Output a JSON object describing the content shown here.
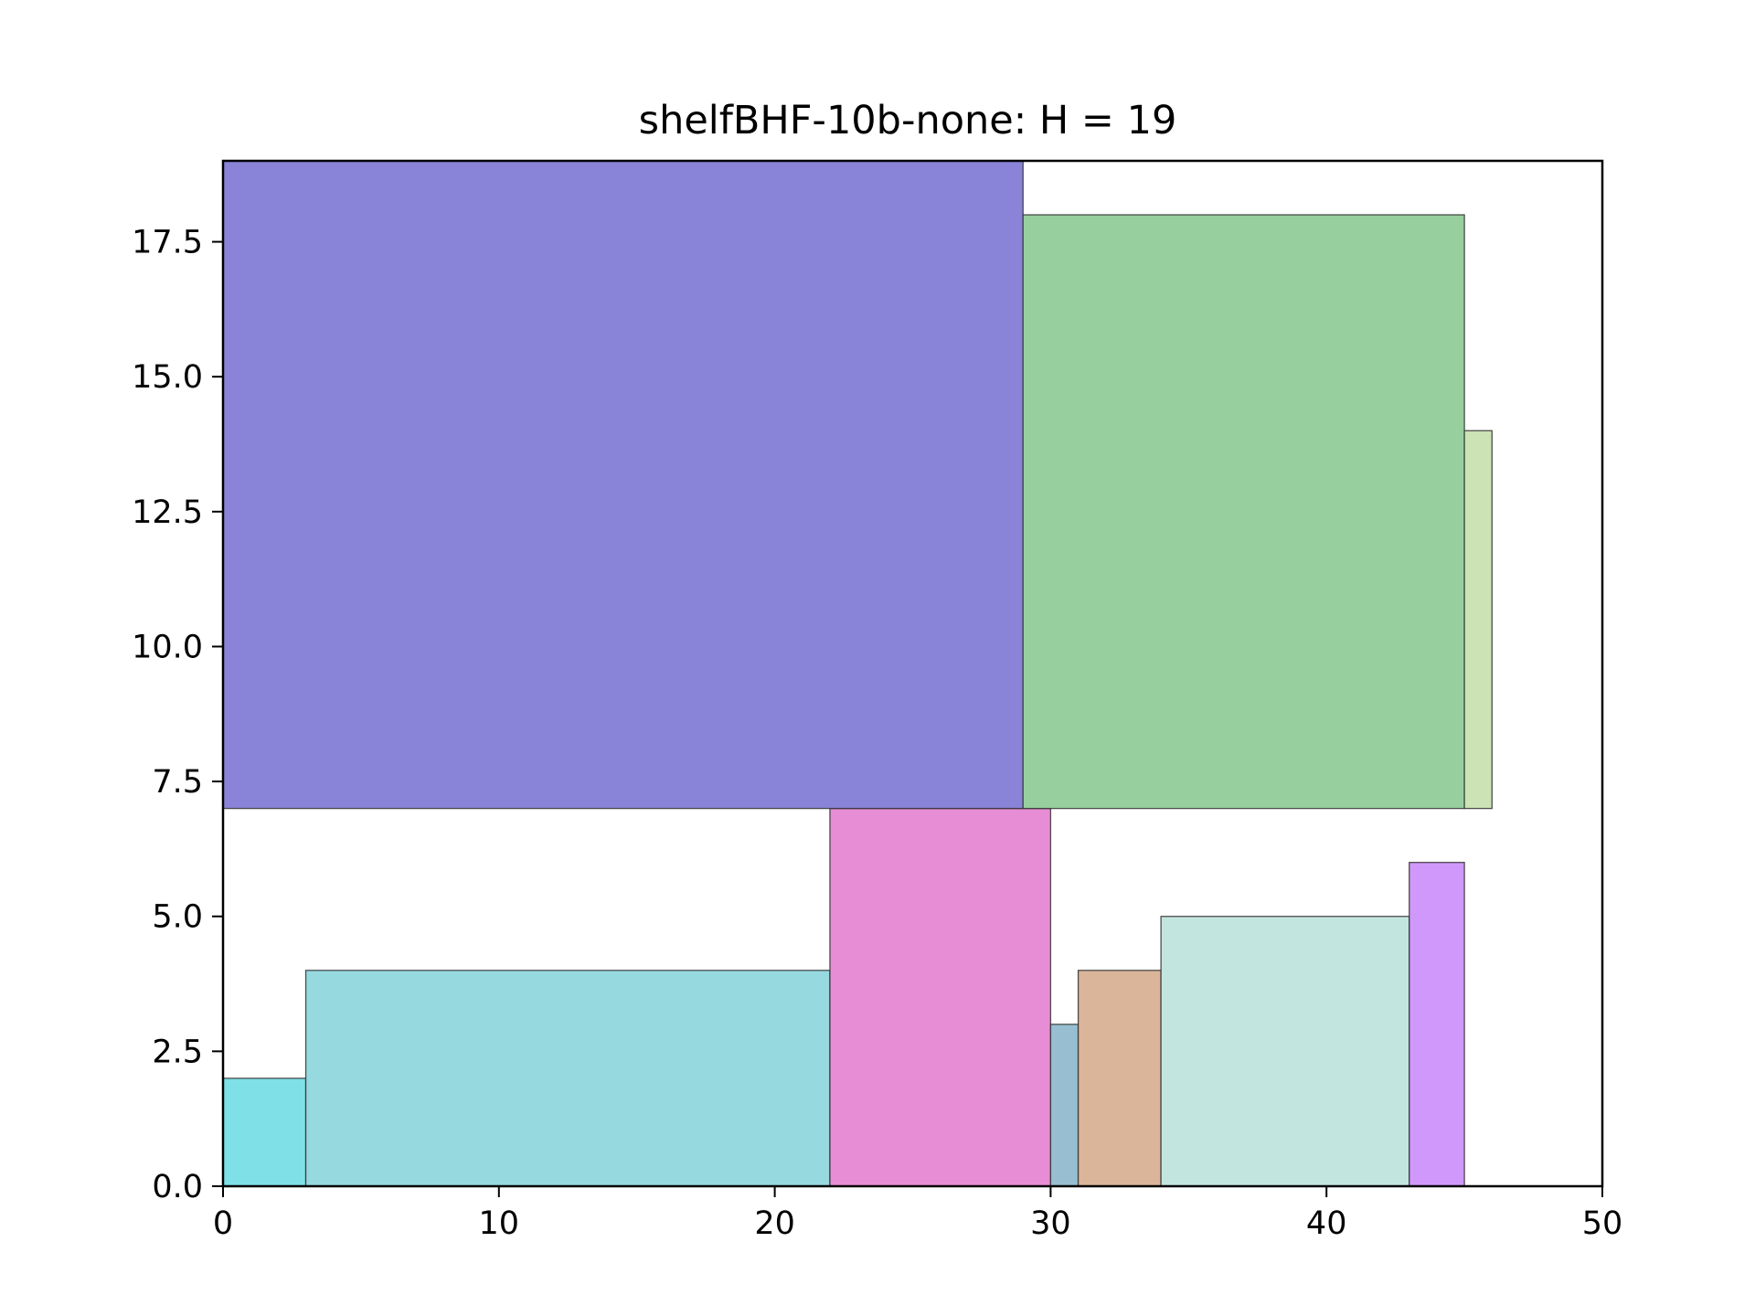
{
  "chart_data": {
    "type": "rectangle-packing",
    "title": "shelfBHF-10b-none: H = 19",
    "xlabel": "",
    "ylabel": "",
    "xlim": [
      0,
      50
    ],
    "ylim": [
      0,
      19
    ],
    "xticks": [
      {
        "value": 0,
        "label": "0"
      },
      {
        "value": 10,
        "label": "10"
      },
      {
        "value": 20,
        "label": "20"
      },
      {
        "value": 30,
        "label": "30"
      },
      {
        "value": 40,
        "label": "40"
      },
      {
        "value": 50,
        "label": "50"
      }
    ],
    "yticks": [
      {
        "value": 0,
        "label": "0.0"
      },
      {
        "value": 2.5,
        "label": "2.5"
      },
      {
        "value": 5,
        "label": "5.0"
      },
      {
        "value": 7.5,
        "label": "7.5"
      },
      {
        "value": 10,
        "label": "10.0"
      },
      {
        "value": 12.5,
        "label": "12.5"
      },
      {
        "value": 15,
        "label": "15.0"
      },
      {
        "value": 17.5,
        "label": "17.5"
      }
    ],
    "grid": false,
    "rectangles": [
      {
        "x": 0,
        "y": 0,
        "w": 3,
        "h": 2,
        "color": "#7fe0e8"
      },
      {
        "x": 3,
        "y": 0,
        "w": 19,
        "h": 4,
        "color": "#96d9df"
      },
      {
        "x": 22,
        "y": 0,
        "w": 8,
        "h": 7,
        "color": "#e78dd5"
      },
      {
        "x": 30,
        "y": 0,
        "w": 1,
        "h": 3,
        "color": "#97bfd1"
      },
      {
        "x": 31,
        "y": 0,
        "w": 3,
        "h": 4,
        "color": "#dab59a"
      },
      {
        "x": 34,
        "y": 0,
        "w": 9,
        "h": 5,
        "color": "#c3e5df"
      },
      {
        "x": 43,
        "y": 0,
        "w": 2,
        "h": 6,
        "color": "#d198fb"
      },
      {
        "x": 0,
        "y": 7,
        "w": 29,
        "h": 12,
        "color": "#8984d8"
      },
      {
        "x": 29,
        "y": 7,
        "w": 16,
        "h": 11,
        "color": "#97d09e"
      },
      {
        "x": 45,
        "y": 7,
        "w": 1,
        "h": 7,
        "color": "#cce3b5"
      }
    ]
  }
}
